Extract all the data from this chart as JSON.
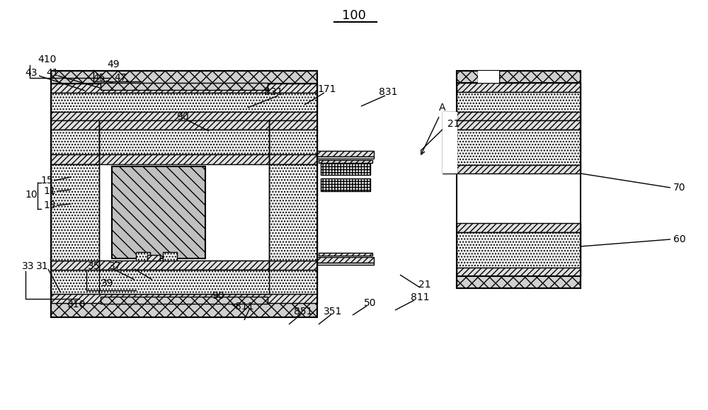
{
  "title": "100",
  "bg_color": "#ffffff",
  "line_color": "#000000",
  "figsize": [
    10.0,
    5.79
  ],
  "fc_cross": "#d0d0d0",
  "fc_chev": "#e0e0e0",
  "fc_dot": "#f0f0f0"
}
